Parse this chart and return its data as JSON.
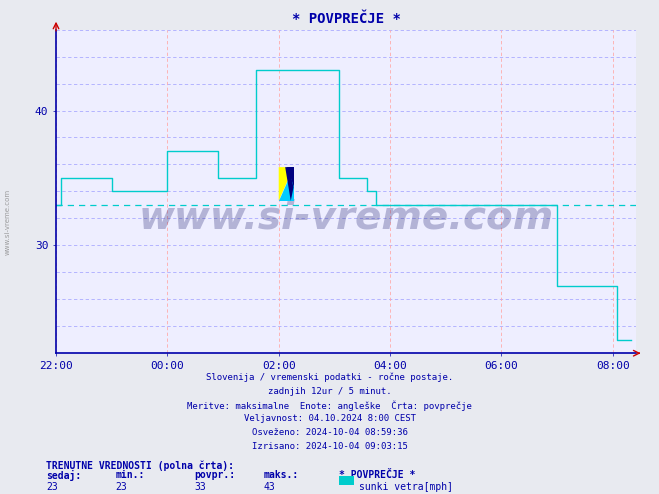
{
  "title": "* POVPREČJE *",
  "bg_color": "#e8eaf0",
  "plot_bg_color": "#eeeeff",
  "line_color": "#00cccc",
  "avg_line_color": "#00cccc",
  "avg_value": 33,
  "yticks": [
    30,
    40
  ],
  "xtick_labels": [
    "22:00",
    "00:00",
    "02:00",
    "04:00",
    "06:00",
    "08:00"
  ],
  "xtick_positions": [
    0,
    120,
    240,
    360,
    480,
    600
  ],
  "xlim": [
    0,
    625
  ],
  "ylim": [
    22,
    46
  ],
  "watermark": "www.si-vreme.com",
  "subtitle_lines": [
    "Slovenija / vremenski podatki - ročne postaje.",
    "zadnjih 12ur / 5 minut.",
    "Meritve: maksimalne  Enote: angleške  Črta: povprečje",
    "Veljavnost: 04.10.2024 8:00 CEST",
    "Osveženo: 2024-10-04 08:59:36",
    "Izrisano: 2024-10-04 09:03:15"
  ],
  "footer_bold": "TRENUTNE VREDNOSTI (polna črta):",
  "footer_labels": [
    "sedaj:",
    "min.:",
    "povpr.:",
    "maks.:",
    "* POVPREČJE *"
  ],
  "footer_values": [
    "23",
    "23",
    "33",
    "43"
  ],
  "legend_color": "#00cccc",
  "legend_label": "sunki vetra[mph]",
  "time_data": [
    0,
    5,
    10,
    15,
    20,
    25,
    30,
    35,
    40,
    45,
    50,
    55,
    60,
    65,
    70,
    75,
    80,
    85,
    90,
    95,
    100,
    105,
    110,
    115,
    120,
    125,
    130,
    135,
    140,
    145,
    150,
    155,
    160,
    165,
    170,
    175,
    180,
    185,
    190,
    195,
    200,
    205,
    210,
    215,
    220,
    225,
    230,
    235,
    240,
    245,
    250,
    255,
    260,
    265,
    270,
    275,
    280,
    285,
    290,
    295,
    300,
    305,
    310,
    315,
    320,
    325,
    330,
    335,
    340,
    345,
    350,
    355,
    360,
    365,
    370,
    375,
    380,
    385,
    390,
    395,
    400,
    405,
    410,
    415,
    420,
    425,
    430,
    435,
    440,
    445,
    450,
    455,
    460,
    465,
    470,
    475,
    480,
    485,
    490,
    495,
    500,
    505,
    510,
    515,
    520,
    525,
    530,
    535,
    540,
    545,
    550,
    555,
    560,
    565,
    570,
    575,
    580,
    585,
    590,
    595,
    600,
    605,
    610,
    615,
    620
  ],
  "wind_data": [
    33,
    35,
    35,
    35,
    35,
    35,
    35,
    35,
    35,
    35,
    35,
    35,
    34,
    34,
    34,
    34,
    34,
    34,
    34,
    34,
    34,
    34,
    34,
    34,
    37,
    37,
    37,
    37,
    37,
    37,
    37,
    37,
    37,
    37,
    37,
    35,
    35,
    35,
    35,
    35,
    35,
    35,
    35,
    43,
    43,
    43,
    43,
    43,
    43,
    43,
    43,
    43,
    43,
    43,
    43,
    43,
    43,
    43,
    43,
    43,
    43,
    35,
    35,
    35,
    35,
    35,
    35,
    34,
    34,
    33,
    33,
    33,
    33,
    33,
    33,
    33,
    33,
    33,
    33,
    33,
    33,
    33,
    33,
    33,
    33,
    33,
    33,
    33,
    33,
    33,
    33,
    33,
    33,
    33,
    33,
    33,
    33,
    33,
    33,
    33,
    33,
    33,
    33,
    33,
    33,
    33,
    33,
    33,
    27,
    27,
    27,
    27,
    27,
    27,
    27,
    27,
    27,
    27,
    27,
    27,
    27,
    23,
    23,
    23,
    23
  ]
}
